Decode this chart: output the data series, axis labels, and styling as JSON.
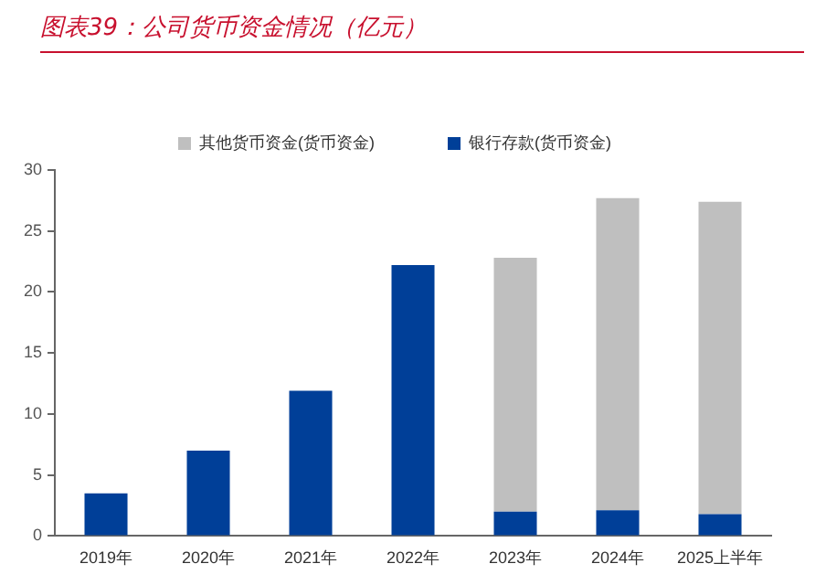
{
  "chart_data": {
    "type": "bar",
    "title": "图表39：公司货币资金情况（亿元）",
    "categories": [
      "2019年",
      "2020年",
      "2021年",
      "2022年",
      "2023年",
      "2024年",
      "2025上半年"
    ],
    "stacked": true,
    "series": [
      {
        "name": "银行存款(货币资金)",
        "color": "#003f98",
        "values": [
          3.5,
          7.0,
          11.9,
          22.2,
          2.0,
          2.1,
          1.8
        ]
      },
      {
        "name": "其他货币资金(货币资金)",
        "color": "#bfbfbf",
        "values": [
          null,
          null,
          null,
          null,
          20.8,
          25.6,
          25.6
        ]
      }
    ],
    "ylim": [
      0,
      30
    ],
    "yticks": [
      0,
      5,
      10,
      15,
      20,
      25,
      30
    ],
    "grid": false,
    "legend": "top"
  }
}
